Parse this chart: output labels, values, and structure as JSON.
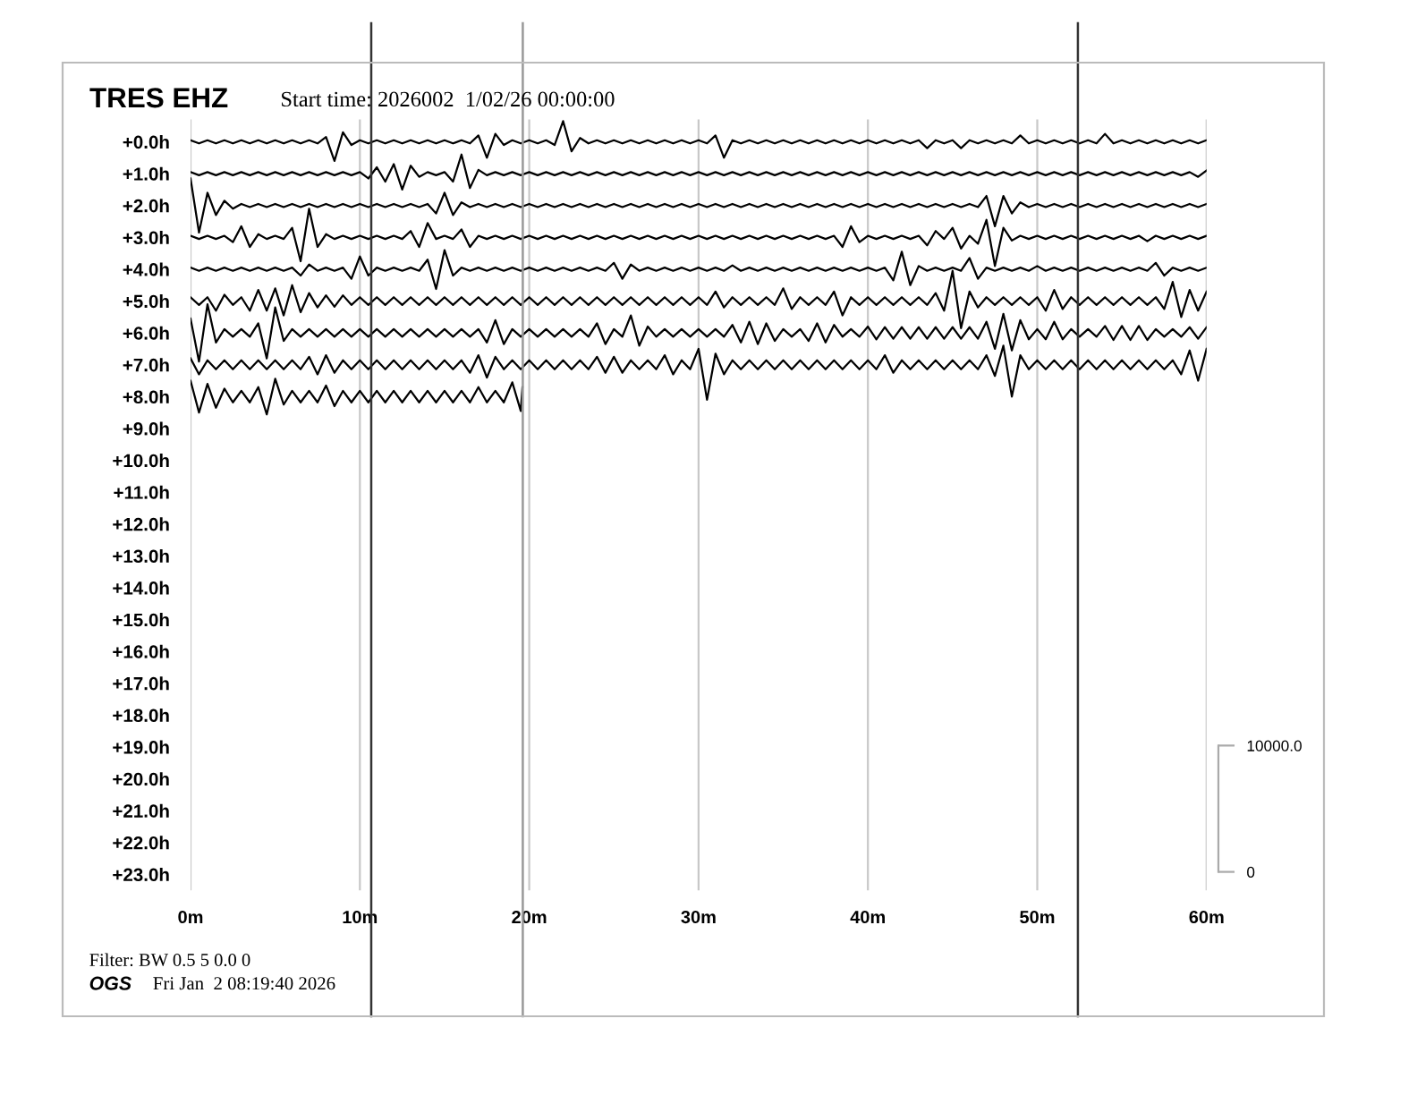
{
  "chart_data": {
    "type": "line",
    "title": "TRES EHZ",
    "subtitle": "Start time: 2026002  1/02/26 00:00:00",
    "annotations": [
      "Filter: BW 0.5 5 0.0 0",
      "OGS",
      "Fri Jan  2 08:19:40 2026"
    ],
    "x": [
      0,
      0.5,
      1,
      1.5,
      2,
      2.5,
      3,
      3.5,
      4,
      4.5,
      5,
      5.5,
      6,
      6.5,
      7,
      7.5,
      8,
      8.5,
      9,
      9.5,
      10,
      10.5,
      11,
      11.5,
      12,
      12.5,
      13,
      13.5,
      14,
      14.5,
      15,
      15.5,
      16,
      16.5,
      17,
      17.5,
      18,
      18.5,
      19,
      19.5,
      20,
      20.5,
      21,
      21.5,
      22,
      22.5,
      23,
      23.5,
      24,
      24.5,
      25,
      25.5,
      26,
      26.5,
      27,
      27.5,
      28,
      28.5,
      29,
      29.5,
      30,
      30.5,
      31,
      31.5,
      32,
      32.5,
      33,
      33.5,
      34,
      34.5,
      35,
      35.5,
      36,
      36.5,
      37,
      37.5,
      38,
      38.5,
      39,
      39.5,
      40,
      40.5,
      41,
      41.5,
      42,
      42.5,
      43,
      43.5,
      44,
      44.5,
      45,
      45.5,
      46,
      46.5,
      47,
      47.5,
      48,
      48.5,
      49,
      49.5,
      50,
      50.5,
      51,
      51.5,
      52,
      52.5,
      53,
      53.5,
      54,
      54.5,
      55,
      55.5,
      56,
      56.5,
      57,
      57.5,
      58,
      58.5,
      59,
      59.5,
      60
    ],
    "xlim": [
      0,
      60
    ],
    "xticks": [
      {
        "value": 0,
        "label": "0m"
      },
      {
        "value": 10,
        "label": "10m"
      },
      {
        "value": 20,
        "label": "20m"
      },
      {
        "value": 30,
        "label": "30m"
      },
      {
        "value": 40,
        "label": "40m"
      },
      {
        "value": 50,
        "label": "50m"
      },
      {
        "value": 60,
        "label": "60m"
      }
    ],
    "ylim": [
      23.5,
      -0.7
    ],
    "yticks": [
      {
        "value": 0,
        "label": "+0.0h"
      },
      {
        "value": 1,
        "label": "+1.0h"
      },
      {
        "value": 2,
        "label": "+2.0h"
      },
      {
        "value": 3,
        "label": "+3.0h"
      },
      {
        "value": 4,
        "label": "+4.0h"
      },
      {
        "value": 5,
        "label": "+5.0h"
      },
      {
        "value": 6,
        "label": "+6.0h"
      },
      {
        "value": 7,
        "label": "+7.0h"
      },
      {
        "value": 8,
        "label": "+8.0h"
      },
      {
        "value": 9,
        "label": "+9.0h"
      },
      {
        "value": 10,
        "label": "+10.0h"
      },
      {
        "value": 11,
        "label": "+11.0h"
      },
      {
        "value": 12,
        "label": "+12.0h"
      },
      {
        "value": 13,
        "label": "+13.0h"
      },
      {
        "value": 14,
        "label": "+14.0h"
      },
      {
        "value": 15,
        "label": "+15.0h"
      },
      {
        "value": 16,
        "label": "+16.0h"
      },
      {
        "value": 17,
        "label": "+17.0h"
      },
      {
        "value": 18,
        "label": "+18.0h"
      },
      {
        "value": 19,
        "label": "+19.0h"
      },
      {
        "value": 20,
        "label": "+20.0h"
      },
      {
        "value": 21,
        "label": "+21.0h"
      },
      {
        "value": 22,
        "label": "+22.0h"
      },
      {
        "value": 23,
        "label": "+23.0h"
      }
    ],
    "y2lim": [
      -1460,
      59560
    ],
    "y2ticks": [
      {
        "value": 0,
        "label": "0"
      },
      {
        "value": 10000,
        "label": "10000.0"
      }
    ],
    "grid": "x",
    "ref_lines": [
      {
        "axis": "x",
        "value": 10.67,
        "color": "#333333"
      },
      {
        "axis": "x",
        "value": 19.62,
        "color": "#999999"
      },
      {
        "axis": "x",
        "value": 52.4,
        "color": "#333333"
      }
    ],
    "series": [
      {
        "color": "#000000",
        "values": [
          -0.05,
          0.05,
          -0.05,
          0.05,
          -0.05,
          0.05,
          -0.05,
          0.05,
          -0.05,
          0.05,
          -0.05,
          0.05,
          -0.05,
          0.05,
          -0.05,
          0.05,
          -0.15,
          0.6,
          -0.3,
          0.1,
          -0.05,
          0.05,
          -0.05,
          0.05,
          -0.05,
          0.05,
          -0.05,
          0.05,
          -0.05,
          0.05,
          -0.05,
          0.05,
          -0.05,
          0.05,
          -0.2,
          0.5,
          -0.25,
          0.1,
          -0.05,
          0.05,
          -0.05,
          0.05,
          -0.05,
          0.1,
          -0.65,
          0.3,
          -0.12,
          0.05,
          -0.05,
          0.05,
          -0.05,
          0.05,
          -0.05,
          0.05,
          -0.05,
          0.05,
          -0.05,
          0.05,
          -0.05,
          0.05,
          -0.05,
          0.05,
          -0.2,
          0.5,
          -0.05,
          0.05,
          -0.05,
          0.05,
          -0.05,
          0.05,
          -0.05,
          0.05,
          -0.05,
          0.05,
          -0.05,
          0.05,
          -0.05,
          0.05,
          -0.05,
          0.05,
          -0.05,
          0.05,
          -0.05,
          0.05,
          -0.05,
          0.05,
          -0.05,
          0.2,
          -0.05,
          0.05,
          -0.05,
          0.2,
          -0.05,
          0.05,
          -0.05,
          0.05,
          -0.05,
          0.05,
          -0.2,
          0.05,
          -0.05,
          0.05,
          -0.05,
          0.05,
          -0.05,
          0.05,
          -0.05,
          0.05,
          -0.25,
          0.05,
          -0.05,
          0.05,
          -0.05,
          0.05,
          -0.05,
          0.05,
          -0.05,
          0.05,
          -0.05,
          0.05,
          -0.05
        ]
      },
      {
        "color": "#000000",
        "values": [
          0.95,
          1.05,
          0.95,
          1.05,
          0.95,
          1.05,
          0.95,
          1.05,
          0.95,
          1.05,
          0.95,
          1.05,
          0.95,
          1.05,
          0.95,
          1.05,
          0.95,
          1.05,
          0.95,
          1.05,
          0.95,
          1.15,
          0.8,
          1.25,
          0.7,
          1.5,
          0.75,
          1.1,
          0.95,
          1.05,
          0.95,
          1.25,
          0.4,
          1.45,
          0.88,
          1.05,
          0.95,
          1.05,
          0.95,
          1.05,
          0.95,
          1.05,
          0.95,
          1.05,
          0.95,
          1.05,
          0.95,
          1.05,
          0.95,
          1.05,
          0.95,
          1.05,
          0.95,
          1.05,
          0.95,
          1.05,
          0.95,
          1.05,
          0.95,
          1.05,
          0.95,
          1.05,
          0.95,
          1.05,
          0.95,
          1.05,
          0.95,
          1.05,
          0.95,
          1.05,
          0.95,
          1.05,
          0.95,
          1.05,
          0.95,
          1.05,
          0.95,
          1.05,
          0.95,
          1.05,
          0.95,
          1.05,
          0.95,
          1.05,
          0.95,
          1.05,
          0.95,
          1.05,
          0.95,
          1.05,
          0.95,
          1.05,
          0.95,
          1.05,
          0.95,
          1.05,
          0.95,
          1.05,
          0.95,
          1.05,
          0.95,
          1.05,
          0.95,
          1.05,
          0.95,
          1.05,
          0.95,
          1.05,
          0.95,
          1.05,
          0.95,
          1.05,
          0.95,
          1.05,
          0.95,
          1.05,
          0.95,
          1.05,
          0.95,
          1.1,
          0.9
        ]
      },
      {
        "color": "#000000",
        "values": [
          1.15,
          2.85,
          1.6,
          2.3,
          1.85,
          2.1,
          1.95,
          2.05,
          1.95,
          2.05,
          1.95,
          2.05,
          1.95,
          2.05,
          1.95,
          2.05,
          1.95,
          2.05,
          1.95,
          2.05,
          1.95,
          2.05,
          1.95,
          2.05,
          1.95,
          2.05,
          1.95,
          2.05,
          1.95,
          2.25,
          1.6,
          2.3,
          1.9,
          2.05,
          1.95,
          2.05,
          1.95,
          2.05,
          1.95,
          2.05,
          1.95,
          2.05,
          1.95,
          2.05,
          1.95,
          2.05,
          1.95,
          2.05,
          1.95,
          2.05,
          1.95,
          2.05,
          1.95,
          2.05,
          1.95,
          2.05,
          1.95,
          2.05,
          1.95,
          2.05,
          1.95,
          2.05,
          1.95,
          2.05,
          1.95,
          2.05,
          1.95,
          2.05,
          1.95,
          2.05,
          1.95,
          2.05,
          1.95,
          2.05,
          1.95,
          2.05,
          1.95,
          2.05,
          1.95,
          2.05,
          1.95,
          2.05,
          1.95,
          2.05,
          1.95,
          2.05,
          1.95,
          2.05,
          1.95,
          2.05,
          1.95,
          2.05,
          1.95,
          2.05,
          1.7,
          2.65,
          1.7,
          2.25,
          1.9,
          2.05,
          1.95,
          2.05,
          1.95,
          2.05,
          1.95,
          2.05,
          1.95,
          2.05,
          1.95,
          2.05,
          1.95,
          2.05,
          1.95,
          2.05,
          1.95,
          2.05,
          1.95,
          2.05,
          1.95,
          2.05,
          1.95
        ]
      },
      {
        "color": "#000000",
        "values": [
          2.95,
          3.05,
          2.95,
          3.05,
          2.95,
          3.15,
          2.65,
          3.3,
          2.9,
          3.05,
          2.95,
          3.05,
          2.7,
          3.75,
          2.1,
          3.3,
          2.9,
          3.05,
          2.95,
          3.05,
          2.95,
          3.05,
          2.95,
          3.05,
          2.95,
          3.05,
          2.8,
          3.3,
          2.55,
          3.05,
          2.95,
          3.05,
          2.75,
          3.3,
          2.95,
          3.05,
          2.95,
          3.05,
          2.95,
          3.05,
          2.95,
          3.05,
          2.95,
          3.05,
          2.95,
          3.05,
          2.95,
          3.05,
          2.95,
          3.05,
          2.95,
          3.05,
          2.95,
          3.05,
          2.95,
          3.05,
          2.95,
          3.05,
          2.95,
          3.05,
          2.95,
          3.05,
          2.95,
          3.05,
          2.95,
          3.05,
          2.95,
          3.05,
          2.95,
          3.05,
          2.95,
          3.05,
          2.95,
          3.05,
          2.95,
          3.05,
          2.95,
          3.3,
          2.65,
          3.15,
          2.95,
          3.05,
          2.95,
          3.05,
          2.95,
          3.05,
          2.95,
          3.25,
          2.8,
          3.05,
          2.7,
          3.35,
          2.95,
          3.2,
          2.45,
          3.9,
          2.7,
          3.1,
          2.95,
          3.05,
          2.95,
          3.05,
          2.95,
          3.05,
          2.95,
          3.05,
          2.95,
          3.05,
          2.95,
          3.05,
          2.95,
          3.05,
          2.95,
          3.12,
          2.95,
          3.05,
          2.95,
          3.05,
          2.95,
          3.05,
          2.95
        ]
      },
      {
        "color": "#000000",
        "values": [
          3.95,
          4.05,
          3.95,
          4.05,
          3.95,
          4.05,
          3.95,
          4.05,
          3.95,
          4.05,
          3.95,
          4.05,
          3.95,
          4.2,
          3.85,
          4.05,
          3.95,
          4.05,
          3.95,
          4.3,
          3.6,
          4.2,
          3.95,
          4.05,
          3.95,
          4.05,
          3.95,
          4.05,
          3.7,
          4.62,
          3.4,
          4.2,
          3.95,
          4.05,
          3.95,
          4.05,
          3.95,
          4.05,
          3.95,
          4.05,
          3.95,
          4.05,
          3.95,
          4.05,
          3.95,
          4.05,
          3.95,
          4.05,
          3.95,
          4.05,
          3.8,
          4.3,
          3.85,
          4.05,
          3.95,
          4.05,
          3.95,
          4.05,
          3.95,
          4.05,
          3.95,
          4.05,
          3.95,
          4.05,
          3.88,
          4.05,
          3.95,
          4.05,
          3.95,
          4.05,
          3.95,
          4.05,
          3.95,
          4.05,
          3.95,
          4.05,
          3.95,
          4.05,
          3.95,
          4.05,
          3.95,
          4.05,
          3.95,
          4.35,
          3.45,
          4.5,
          3.9,
          4.05,
          3.95,
          4.05,
          3.95,
          4.05,
          3.65,
          4.3,
          3.95,
          4.05,
          3.95,
          4.05,
          3.95,
          4.05,
          3.9,
          4.05,
          3.95,
          4.05,
          3.95,
          4.05,
          3.95,
          4.05,
          3.95,
          4.05,
          3.95,
          4.05,
          3.95,
          4.05,
          3.8,
          4.2,
          3.95,
          4.05,
          3.95,
          4.05,
          3.95
        ]
      },
      {
        "color": "#000000",
        "values": [
          4.88,
          5.12,
          4.88,
          5.3,
          4.8,
          5.12,
          4.88,
          5.3,
          4.65,
          5.3,
          4.6,
          5.45,
          4.5,
          5.35,
          4.75,
          5.2,
          4.82,
          5.18,
          4.82,
          5.12,
          4.88,
          5.12,
          4.88,
          5.12,
          4.88,
          5.12,
          4.88,
          5.12,
          4.88,
          5.12,
          4.88,
          5.12,
          4.88,
          5.12,
          4.88,
          5.12,
          4.88,
          5.12,
          4.88,
          5.12,
          4.88,
          5.12,
          4.88,
          5.12,
          4.88,
          5.12,
          4.88,
          5.12,
          4.88,
          5.12,
          4.88,
          5.12,
          4.88,
          5.12,
          4.88,
          5.12,
          4.88,
          5.12,
          4.88,
          5.12,
          4.88,
          5.12,
          4.7,
          5.2,
          4.88,
          5.12,
          4.88,
          5.12,
          4.88,
          5.12,
          4.6,
          5.25,
          4.88,
          5.12,
          4.88,
          5.12,
          4.7,
          5.45,
          4.88,
          5.12,
          4.88,
          5.12,
          4.88,
          5.12,
          4.88,
          5.12,
          4.88,
          5.12,
          4.75,
          5.3,
          4.05,
          5.85,
          4.7,
          5.2,
          4.88,
          5.12,
          4.88,
          5.12,
          4.88,
          5.12,
          4.88,
          5.3,
          4.65,
          5.25,
          4.88,
          5.12,
          4.88,
          5.12,
          4.88,
          5.12,
          4.88,
          5.12,
          4.88,
          5.12,
          4.88,
          5.25,
          4.4,
          5.5,
          4.65,
          5.3,
          4.7
        ]
      },
      {
        "color": "#000000",
        "values": [
          5.55,
          6.9,
          5.1,
          6.3,
          5.88,
          6.12,
          5.88,
          6.12,
          5.7,
          6.8,
          5.2,
          6.25,
          5.88,
          6.12,
          5.88,
          6.12,
          5.88,
          6.12,
          5.88,
          6.12,
          5.88,
          6.12,
          5.88,
          6.12,
          5.88,
          6.12,
          5.88,
          6.12,
          5.88,
          6.12,
          5.88,
          6.12,
          5.88,
          6.12,
          5.88,
          6.3,
          5.6,
          6.35,
          5.88,
          6.12,
          5.88,
          6.12,
          5.88,
          6.12,
          5.88,
          6.12,
          5.88,
          6.12,
          5.7,
          6.35,
          5.88,
          6.12,
          5.45,
          6.4,
          5.8,
          6.12,
          5.88,
          6.12,
          5.88,
          6.12,
          5.88,
          6.12,
          5.88,
          6.12,
          5.75,
          6.3,
          5.65,
          6.35,
          5.7,
          6.25,
          5.88,
          6.12,
          5.88,
          6.25,
          5.7,
          6.3,
          5.75,
          6.12,
          5.88,
          6.12,
          5.8,
          6.2,
          5.82,
          6.18,
          5.82,
          6.18,
          5.82,
          6.18,
          5.82,
          6.18,
          5.82,
          6.18,
          5.82,
          6.18,
          5.65,
          6.5,
          5.4,
          6.55,
          5.6,
          6.2,
          5.88,
          6.2,
          5.65,
          6.2,
          5.88,
          6.12,
          5.88,
          6.12,
          5.78,
          6.22,
          5.78,
          6.22,
          5.78,
          6.22,
          5.88,
          6.12,
          5.88,
          6.12,
          5.82,
          6.18,
          5.82
        ]
      },
      {
        "color": "#000000",
        "values": [
          6.8,
          7.3,
          6.86,
          7.14,
          6.86,
          7.14,
          6.86,
          7.14,
          6.86,
          7.14,
          6.86,
          7.14,
          6.86,
          7.14,
          6.75,
          7.3,
          6.7,
          7.25,
          6.86,
          7.14,
          6.86,
          7.14,
          6.86,
          7.14,
          6.86,
          7.14,
          6.86,
          7.14,
          6.86,
          7.14,
          6.86,
          7.14,
          6.86,
          7.25,
          6.7,
          7.4,
          6.75,
          7.14,
          6.86,
          7.14,
          6.86,
          7.14,
          6.86,
          7.14,
          6.86,
          7.14,
          6.86,
          7.14,
          6.75,
          7.25,
          6.75,
          7.25,
          6.86,
          7.14,
          6.86,
          7.14,
          6.7,
          7.3,
          6.86,
          7.14,
          6.5,
          8.1,
          6.65,
          7.3,
          6.86,
          7.14,
          6.86,
          7.14,
          6.86,
          7.14,
          6.86,
          7.14,
          6.86,
          7.14,
          6.86,
          7.14,
          6.86,
          7.14,
          6.86,
          7.14,
          6.86,
          7.14,
          6.7,
          7.25,
          6.86,
          7.14,
          6.86,
          7.14,
          6.86,
          7.14,
          6.86,
          7.14,
          6.86,
          7.14,
          6.7,
          7.35,
          6.4,
          8.0,
          6.7,
          7.14,
          6.86,
          7.14,
          6.86,
          7.14,
          6.86,
          7.14,
          6.86,
          7.14,
          6.86,
          7.14,
          6.86,
          7.14,
          6.86,
          7.14,
          6.86,
          7.14,
          6.86,
          7.3,
          6.55,
          7.5,
          6.5
        ]
      },
      {
        "color": "#000000",
        "x": [
          0,
          0.5,
          1,
          1.5,
          2,
          2.5,
          3,
          3.5,
          4,
          4.5,
          5,
          5.5,
          6,
          6.5,
          7,
          7.5,
          8,
          8.5,
          9,
          9.5,
          10,
          10.5,
          11,
          11.5,
          12,
          12.5,
          13,
          13.5,
          14,
          14.5,
          15,
          15.5,
          16,
          16.5,
          17,
          17.5,
          18,
          18.5,
          19,
          19.5,
          19.6
        ],
        "values": [
          7.5,
          8.5,
          7.6,
          8.35,
          7.75,
          8.18,
          7.82,
          8.18,
          7.7,
          8.56,
          7.44,
          8.25,
          7.82,
          8.18,
          7.82,
          8.18,
          7.65,
          8.3,
          7.82,
          8.18,
          7.82,
          8.18,
          7.82,
          8.18,
          7.82,
          8.18,
          7.82,
          8.18,
          7.82,
          8.18,
          7.82,
          8.18,
          7.82,
          8.18,
          7.7,
          8.18,
          7.82,
          8.18,
          7.55,
          8.45,
          7.7
        ]
      }
    ]
  }
}
